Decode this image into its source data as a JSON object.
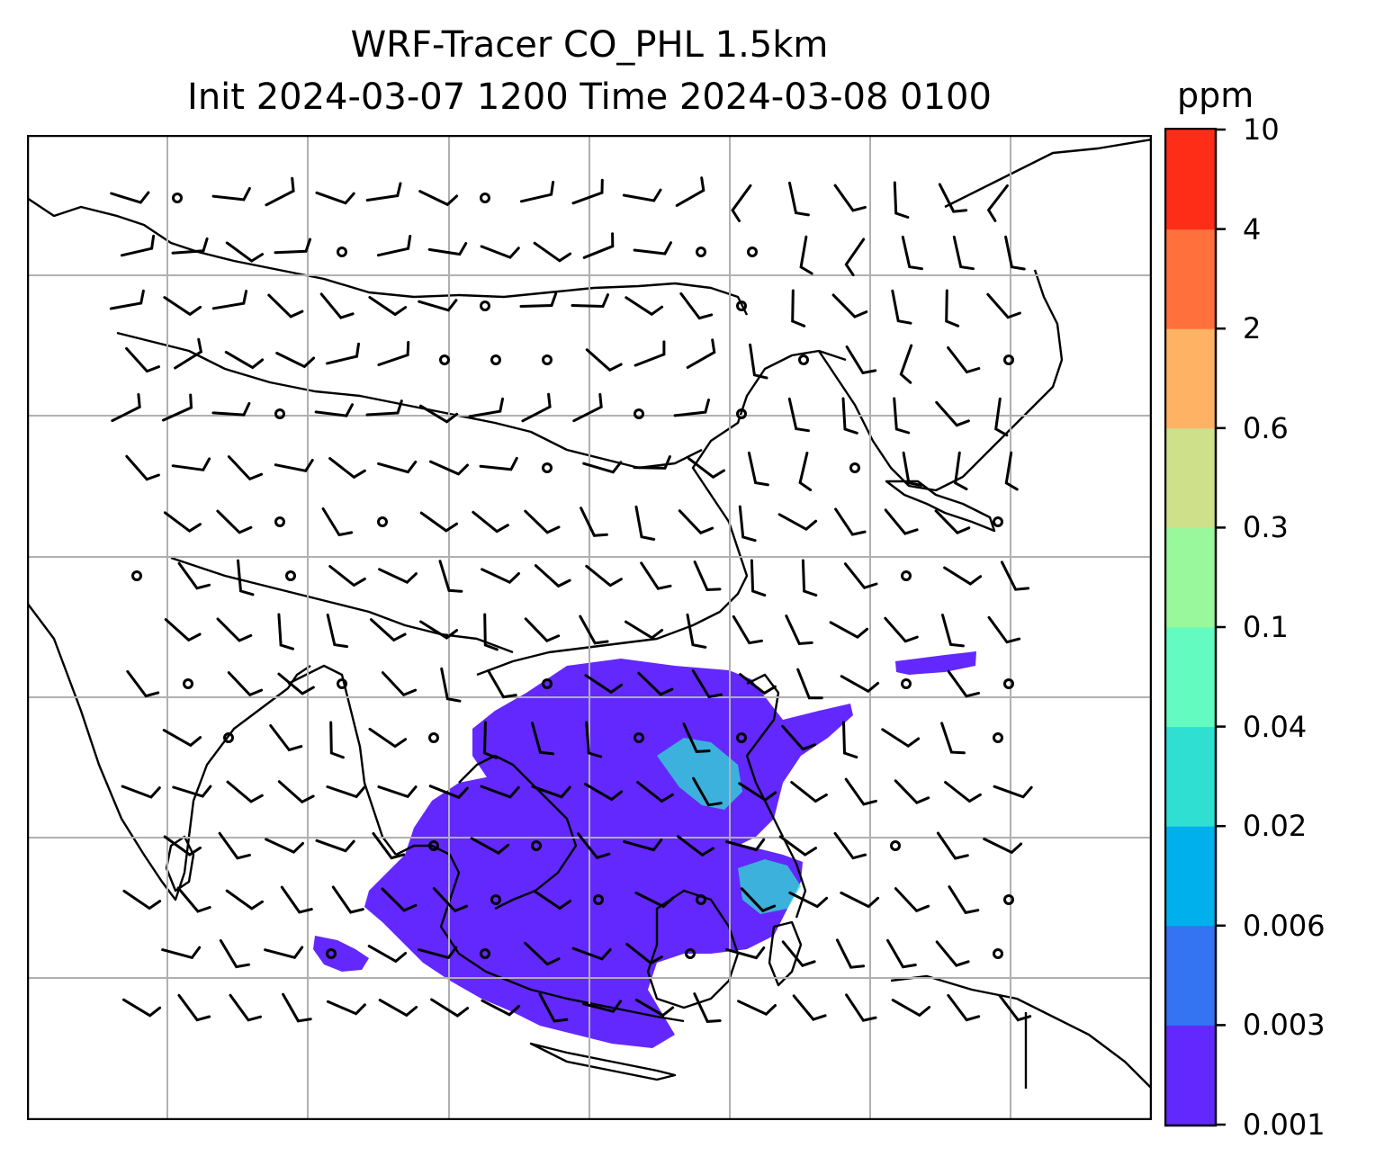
{
  "title": {
    "line1": "WRF-Tracer CO_PHL 1.5km",
    "line2": "Init 2024-03-07 1200 Time 2024-03-08 0100"
  },
  "colorbar": {
    "unit": "ppm",
    "ticks": [
      "0.001",
      "0.003",
      "0.006",
      "0.02",
      "0.04",
      "0.1",
      "0.3",
      "0.6",
      "2",
      "4",
      "10"
    ],
    "colors": [
      "#6328fd",
      "#3473f2",
      "#00b0ec",
      "#2fdfd2",
      "#63fbbf",
      "#99f79c",
      "#cee08a",
      "#feb264",
      "#ff703d",
      "#fd2d17"
    ]
  },
  "map": {
    "gridlines": true,
    "tracer_color": "#6328fd",
    "tracer_highlight_color": "#2fdfd2",
    "coastline_color": "#000000",
    "grid_color": "#b0b0b0"
  }
}
